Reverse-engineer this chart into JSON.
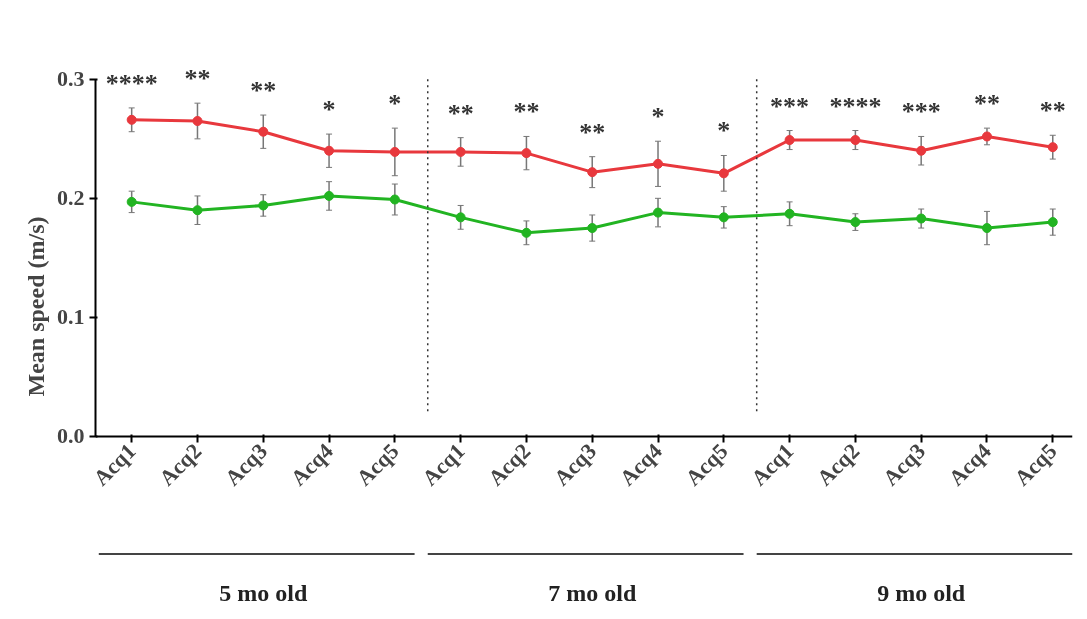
{
  "chart_data": {
    "type": "line",
    "ylabel": "Mean speed (m/s)",
    "categories": [
      "Acq1",
      "Acq2",
      "Acq3",
      "Acq4",
      "Acq5",
      "Acq1",
      "Acq2",
      "Acq3",
      "Acq4",
      "Acq5",
      "Acq1",
      "Acq2",
      "Acq3",
      "Acq4",
      "Acq5"
    ],
    "ylim": [
      0,
      0.3
    ],
    "yticks": [
      {
        "value": 0,
        "label": "0.0"
      },
      {
        "value": 0.1,
        "label": "0.1"
      },
      {
        "value": 0.2,
        "label": "0.2"
      },
      {
        "value": 0.3,
        "label": "0.3"
      }
    ],
    "series": [
      {
        "color": "#e8383d",
        "values": [
          0.266,
          0.265,
          0.256,
          0.24,
          0.239,
          0.239,
          0.238,
          0.222,
          0.229,
          0.221,
          0.249,
          0.249,
          0.24,
          0.252,
          0.243
        ],
        "errors": [
          0.01,
          0.015,
          0.014,
          0.014,
          0.02,
          0.012,
          0.014,
          0.013,
          0.019,
          0.015,
          0.008,
          0.008,
          0.012,
          0.007,
          0.01
        ]
      },
      {
        "color": "#22b422",
        "values": [
          0.197,
          0.19,
          0.194,
          0.202,
          0.199,
          0.184,
          0.171,
          0.175,
          0.188,
          0.184,
          0.187,
          0.18,
          0.183,
          0.175,
          0.18
        ],
        "errors": [
          0.009,
          0.012,
          0.009,
          0.012,
          0.013,
          0.01,
          0.01,
          0.011,
          0.012,
          0.009,
          0.01,
          0.007,
          0.008,
          0.014,
          0.011
        ]
      }
    ],
    "marker": "circle",
    "line_style": "solid",
    "grid": false,
    "annotations": [
      "****",
      "**",
      "**",
      "*",
      "*",
      "**",
      "**",
      "**",
      "*",
      "*",
      "***",
      "****",
      "***",
      "**",
      "**",
      "5 mo old",
      "7 mo old",
      "9 mo old"
    ]
  }
}
